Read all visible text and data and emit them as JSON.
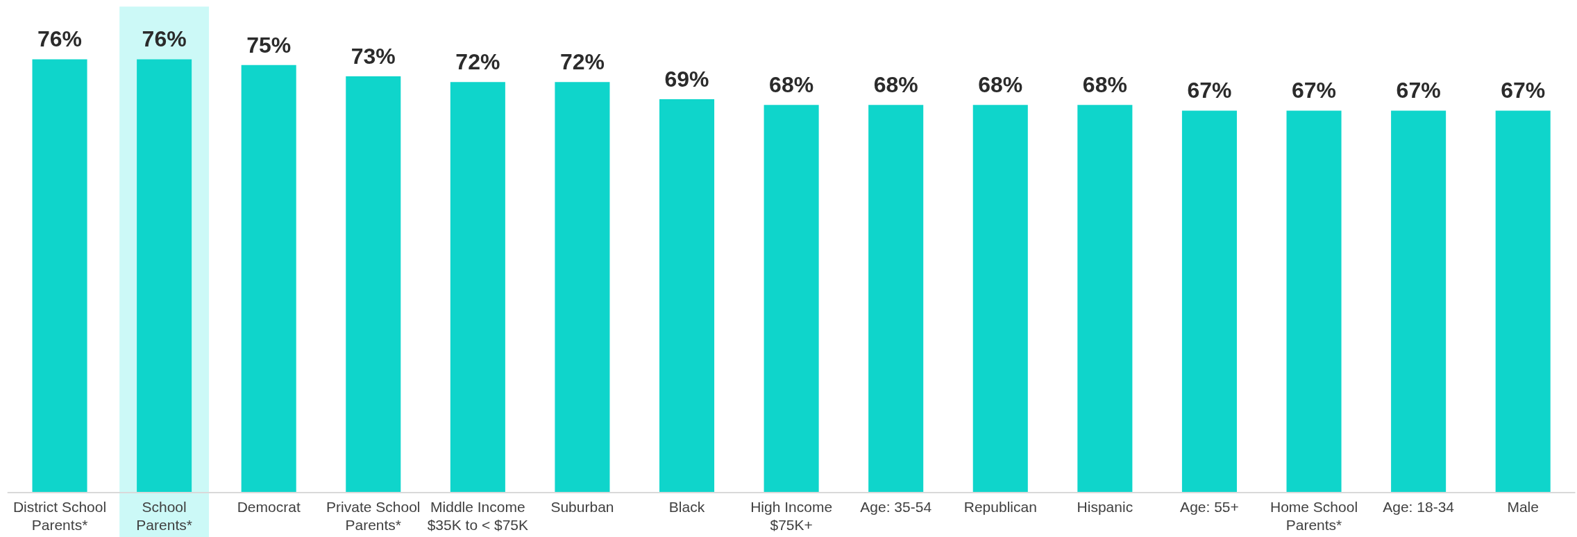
{
  "chart_data": {
    "type": "bar",
    "categories": [
      "District School\nParents*",
      "School\nParents*",
      "Democrat",
      "Private School\nParents*",
      "Middle Income\n$35K to < $75K",
      "Suburban",
      "Black",
      "High Income\n$75K+",
      "Age: 35-54",
      "Republican",
      "Hispanic",
      "Age: 55+",
      "Home School\nParents*",
      "Age: 18-34",
      "Male"
    ],
    "values": [
      76,
      76,
      75,
      73,
      72,
      72,
      69,
      68,
      68,
      68,
      68,
      67,
      67,
      67,
      67
    ],
    "value_labels": [
      "76%",
      "76%",
      "75%",
      "73%",
      "72%",
      "72%",
      "69%",
      "68%",
      "68%",
      "68%",
      "68%",
      "67%",
      "67%",
      "67%",
      "67%"
    ],
    "color": "#0fd5cb",
    "tick_labels": "x",
    "bands": [
      {
        "axis": "x",
        "from": "School\nParents*",
        "to": "School\nParents*",
        "color": "#ccf9f7"
      }
    ]
  }
}
